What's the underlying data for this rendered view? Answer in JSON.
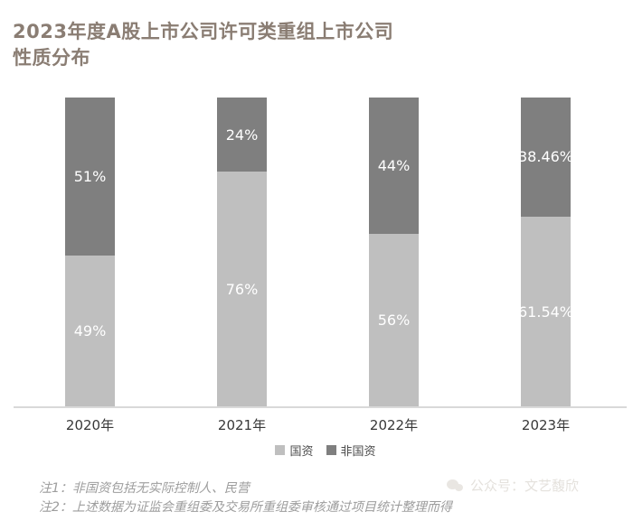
{
  "title": {
    "line1": "2023年度A股上市公司许可类重组上市公司",
    "line2": "性质分布"
  },
  "chart_data": {
    "type": "bar",
    "subtype": "100-percent-stacked-column",
    "title": "2023年度A股上市公司许可类重组上市公司性质分布",
    "categories": [
      "2020年",
      "2021年",
      "2022年",
      "2023年"
    ],
    "series": [
      {
        "name": "国资",
        "color": "#bfbfbf",
        "values": [
          49,
          76,
          56,
          61.54
        ],
        "labels": [
          "49%",
          "76%",
          "56%",
          "61.54%"
        ]
      },
      {
        "name": "非国资",
        "color": "#7f7f7f",
        "values": [
          51,
          24,
          44,
          38.46
        ],
        "labels": [
          "51%",
          "24%",
          "44%",
          "38.46%"
        ]
      }
    ],
    "stack_order_top_to_bottom": [
      "非国资",
      "国资"
    ],
    "ylim": [
      0,
      100
    ],
    "grid": false,
    "legend_position": "bottom",
    "data_label_color": "#ffffff"
  },
  "notes": [
    "注1：非国资包括无实际控制人、民营",
    "注2：上述数据为证监会重组委及交易所重组委审核通过项目统计整理而得"
  ],
  "watermark": {
    "icon": "wechat-icon",
    "text": "公众号：文艺馥欣"
  },
  "colors": {
    "title": "#8a7d73",
    "axis_line": "#d9d9d9",
    "category_label": "#383838",
    "legend_text": "#4d4d4d",
    "note_text": "#9d9d9d"
  }
}
